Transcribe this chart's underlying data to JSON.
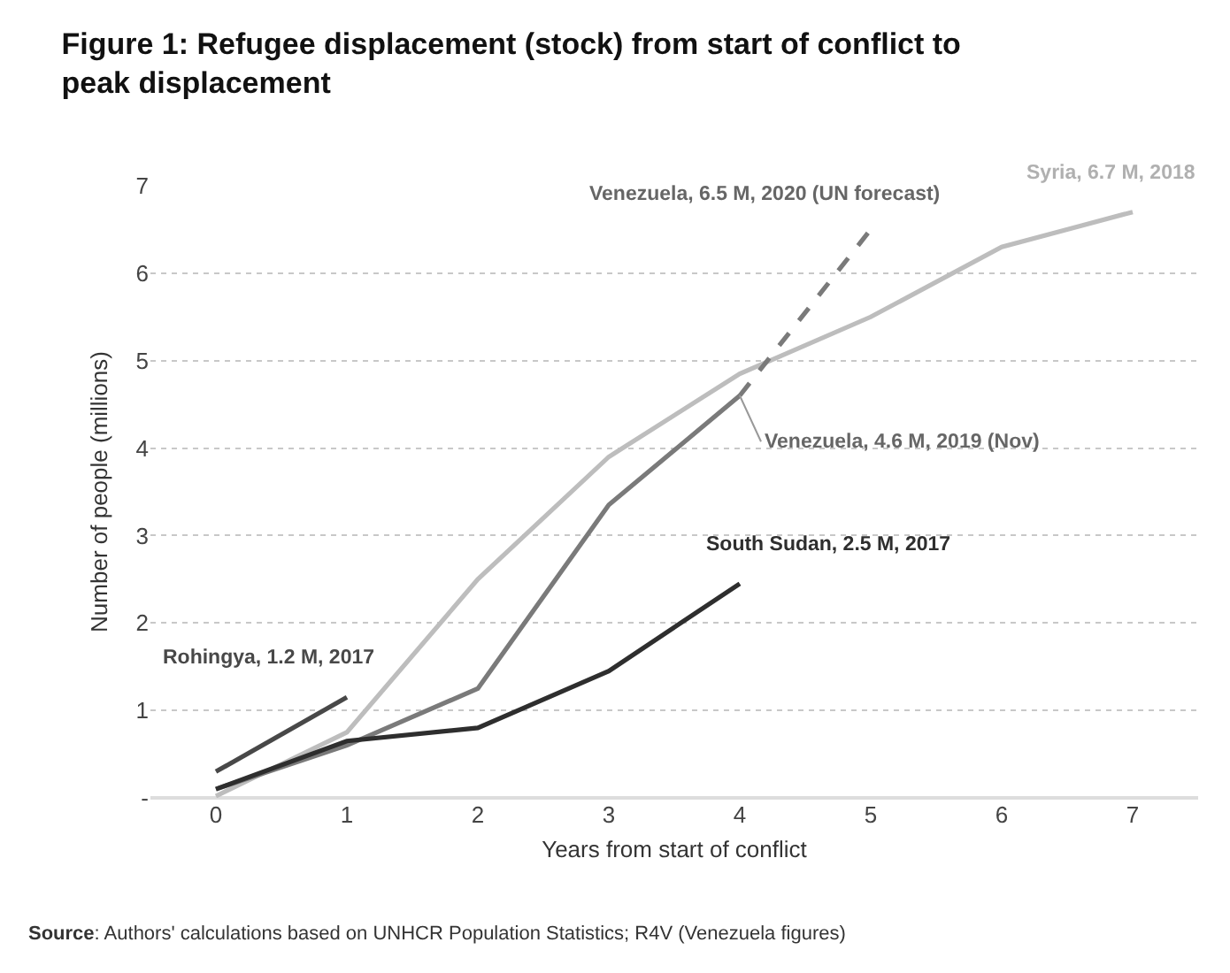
{
  "chart_data": {
    "type": "line",
    "title": "Figure 1: Refugee displacement (stock) from start of conflict to peak displacement",
    "xlabel": "Years from start of conflict",
    "ylabel": "Number of people (millions)",
    "xlim": [
      -0.5,
      7.5
    ],
    "xticks": [
      0,
      1,
      2,
      3,
      4,
      5,
      6,
      7
    ],
    "ylim": [
      0,
      7
    ],
    "yticks": [
      {
        "value": 0,
        "label": "-"
      },
      1,
      2,
      3,
      4,
      5,
      6,
      7
    ],
    "grid": "y",
    "marker": "none",
    "series": [
      {
        "color": "#bdbdbd",
        "x": [
          0,
          1,
          2,
          3,
          4,
          5,
          6,
          7
        ],
        "values": [
          0.02,
          0.75,
          2.5,
          3.9,
          4.85,
          5.5,
          6.3,
          6.7
        ]
      },
      {
        "color": "#7a7a7a",
        "x": [
          0,
          1,
          2,
          3,
          4
        ],
        "values": [
          0.1,
          0.6,
          1.25,
          3.35,
          4.6
        ]
      },
      {
        "color": "#7a7a7a",
        "x": [
          4,
          5
        ],
        "values": [
          4.6,
          6.5
        ],
        "line_style": "dashed"
      },
      {
        "color": "#2e2e2e",
        "x": [
          0,
          1,
          2,
          3,
          4
        ],
        "values": [
          0.1,
          0.65,
          0.8,
          1.45,
          2.45
        ]
      },
      {
        "color": "#484848",
        "x": [
          0,
          1
        ],
        "values": [
          0.3,
          1.15
        ]
      }
    ],
    "annotations": [
      {
        "text": "Venezuela, 6.5 M, 2020 (UN forecast)",
        "x": 5,
        "y": 6.5
      },
      {
        "text": "Syria, 6.7 M, 2018",
        "x": 7,
        "y": 6.7
      },
      {
        "text": "Venezuela, 4.6 M, 2019 (Nov)",
        "x": 4,
        "y": 4.6
      },
      {
        "text": "South Sudan, 2.5 M, 2017",
        "x": 4,
        "y": 2.45
      },
      {
        "text": "Rohingya, 1.2 M, 2017",
        "x": 1,
        "y": 1.15
      },
      "Source: Authors' calculations based on UNHCR Population Statistics; R4V (Venezuela figures)"
    ]
  }
}
